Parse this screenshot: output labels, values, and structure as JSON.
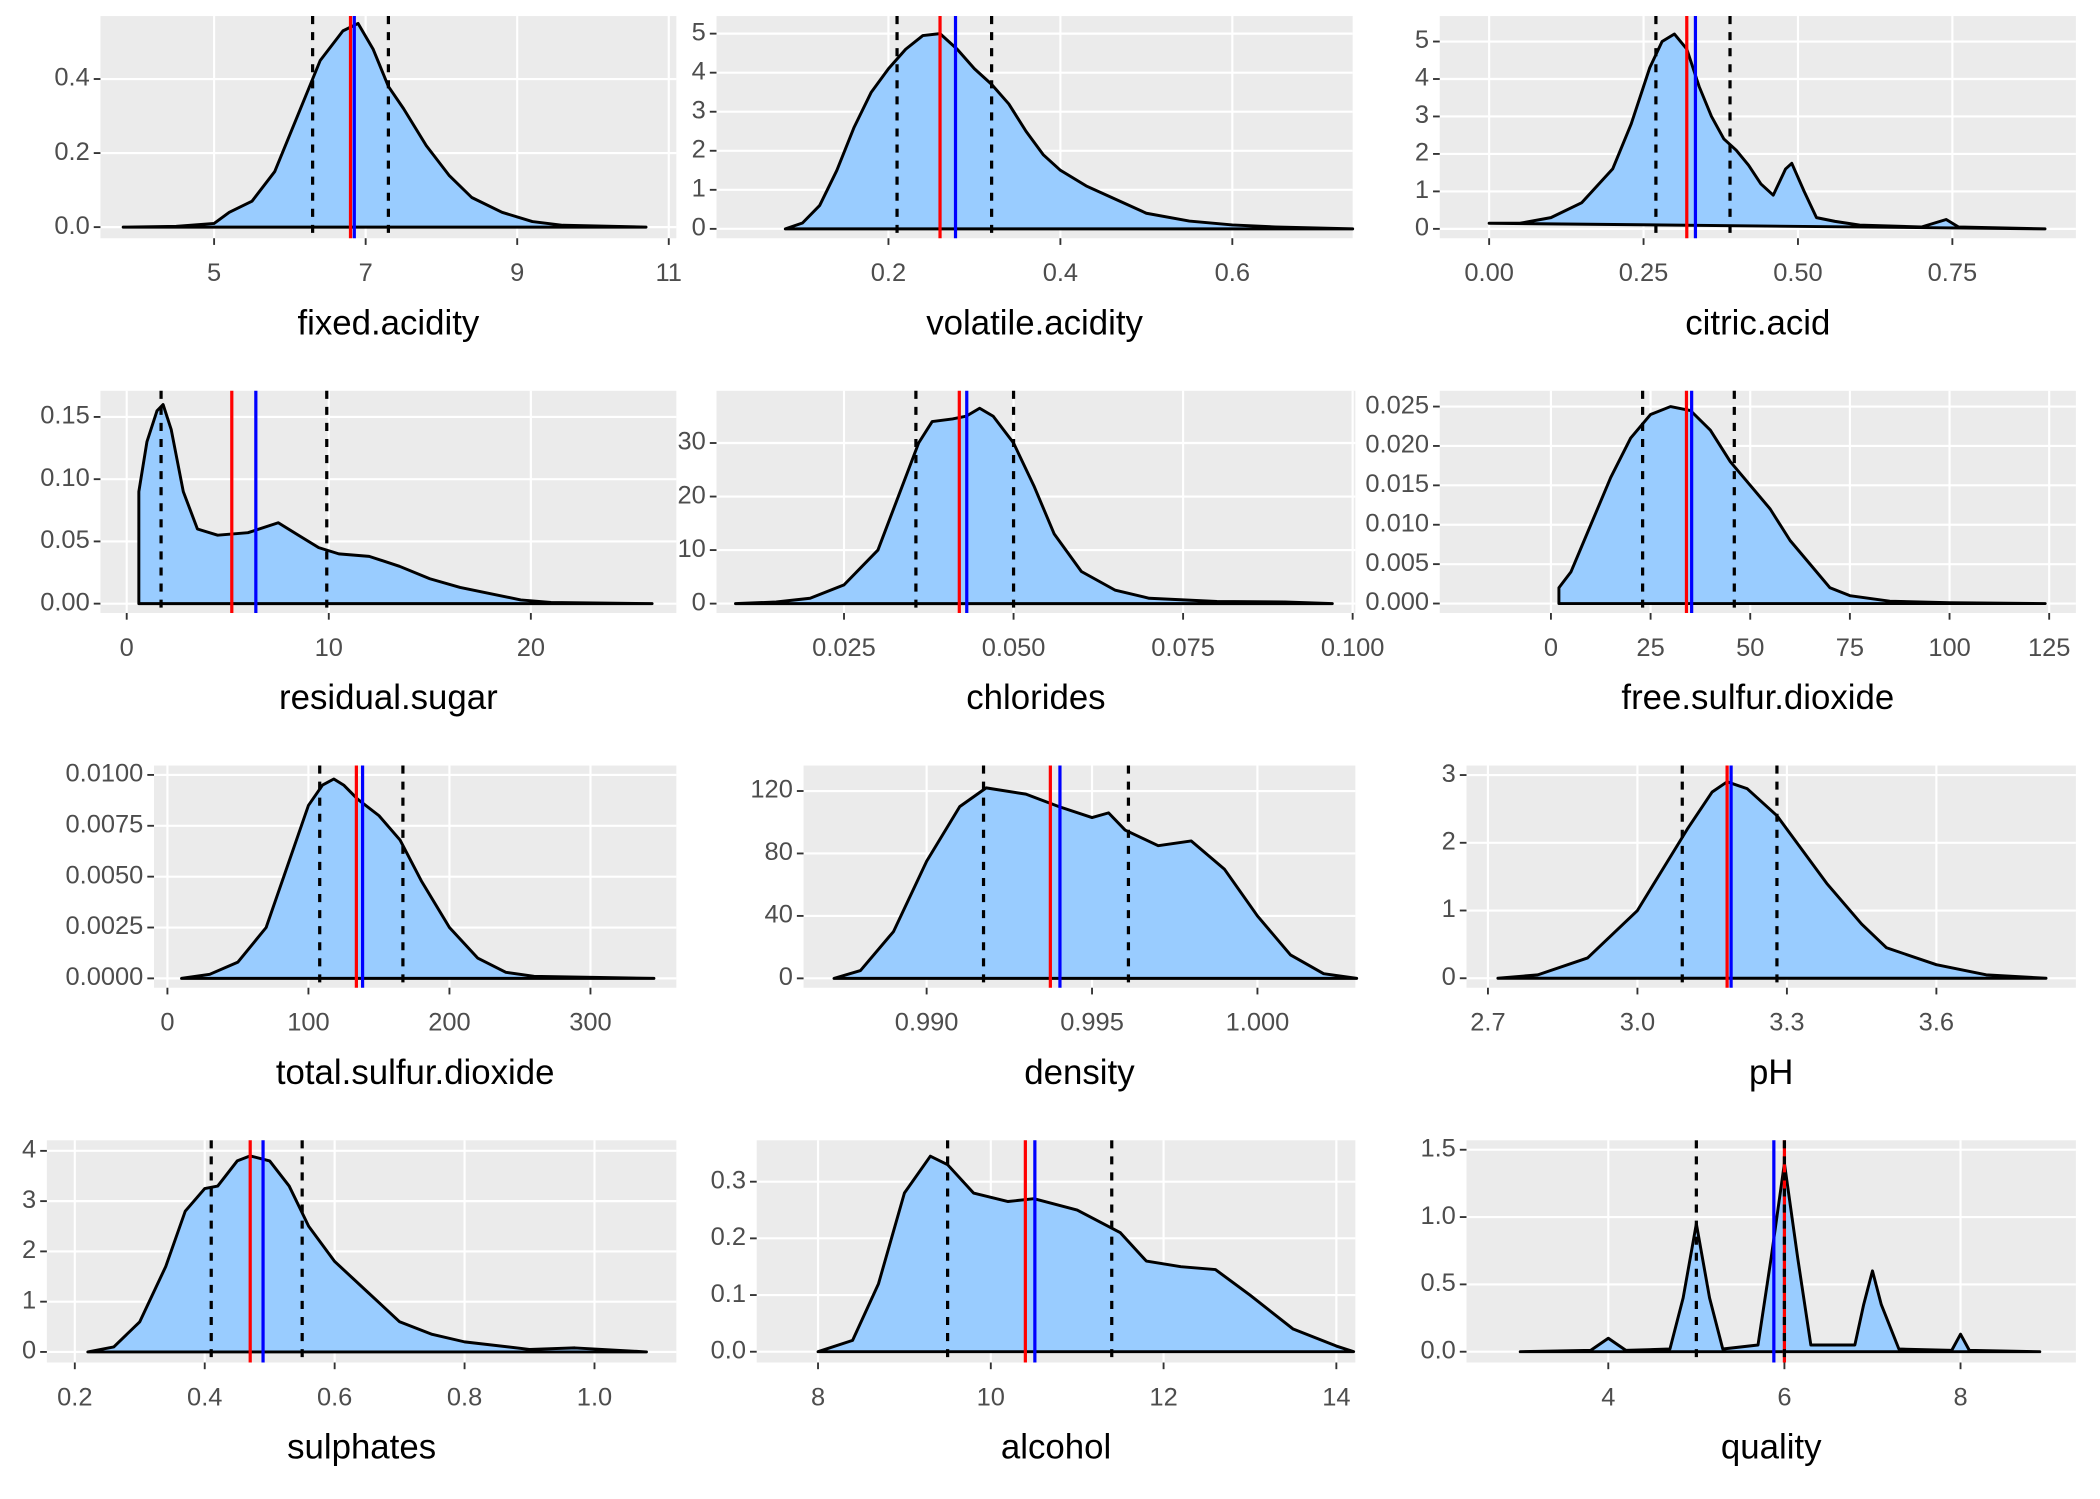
{
  "chart_data": [
    {
      "type": "density",
      "x_label": "fixed.acidity",
      "color": "#99ccff",
      "grid": true,
      "x": [
        3.8,
        4.5,
        5,
        5.2,
        5.5,
        5.8,
        6.1,
        6.4,
        6.7,
        6.9,
        7.1,
        7.3,
        7.5,
        7.8,
        8.1,
        8.4,
        8.8,
        9.2,
        9.6,
        10.7
      ],
      "values": [
        0,
        0.002,
        0.01,
        0.04,
        0.07,
        0.15,
        0.3,
        0.45,
        0.53,
        0.55,
        0.48,
        0.38,
        0.32,
        0.22,
        0.14,
        0.08,
        0.04,
        0.015,
        0.005,
        0
      ],
      "xlim": [
        3.5,
        11.1
      ],
      "ylim": [
        -0.03,
        0.57
      ],
      "xticks": [
        5,
        7,
        9,
        11
      ],
      "yticks": [
        {
          "value": 0,
          "label": "0.0"
        },
        0.2,
        0.4
      ],
      "reference_lines": [
        {
          "value": 6.8,
          "color": "red",
          "dashed": false
        },
        {
          "value": 6.85,
          "color": "blue",
          "dashed": false
        },
        {
          "value": 6.3,
          "color": "black",
          "dashed": true
        },
        {
          "value": 7.3,
          "color": "black",
          "dashed": true
        }
      ]
    },
    {
      "type": "density",
      "x_label": "volatile.acidity",
      "color": "#99ccff",
      "grid": true,
      "x": [
        0.08,
        0.1,
        0.12,
        0.14,
        0.16,
        0.18,
        0.2,
        0.22,
        0.24,
        0.26,
        0.28,
        0.3,
        0.32,
        0.34,
        0.36,
        0.38,
        0.4,
        0.43,
        0.46,
        0.5,
        0.55,
        0.6,
        0.65,
        0.74
      ],
      "values": [
        0,
        0.15,
        0.6,
        1.5,
        2.6,
        3.5,
        4.1,
        4.6,
        4.95,
        5.0,
        4.6,
        4.1,
        3.7,
        3.2,
        2.5,
        1.9,
        1.5,
        1.1,
        0.8,
        0.4,
        0.2,
        0.1,
        0.05,
        0
      ],
      "xlim": [
        0.0,
        0.74
      ],
      "ylim": [
        -0.24,
        5.45
      ],
      "xticks": [
        0.2,
        0.4,
        0.6
      ],
      "yticks": [
        0,
        1,
        2,
        3,
        4,
        5
      ],
      "reference_lines": [
        {
          "value": 0.26,
          "color": "red",
          "dashed": false
        },
        {
          "value": 0.278,
          "color": "blue",
          "dashed": false
        },
        {
          "value": 0.21,
          "color": "black",
          "dashed": true
        },
        {
          "value": 0.32,
          "color": "black",
          "dashed": true
        }
      ]
    },
    {
      "type": "density",
      "x_label": "citric.acid",
      "color": "#99ccff",
      "grid": true,
      "x": [
        0,
        0.05,
        0.1,
        0.15,
        0.2,
        0.23,
        0.26,
        0.28,
        0.3,
        0.32,
        0.34,
        0.36,
        0.38,
        0.4,
        0.42,
        0.44,
        0.46,
        0.48,
        0.49,
        0.51,
        0.53,
        0.56,
        0.6,
        0.7,
        0.74,
        0.76,
        0.9
      ],
      "values": [
        0.15,
        0.15,
        0.3,
        0.7,
        1.6,
        2.8,
        4.3,
        5.0,
        5.2,
        4.8,
        3.8,
        3.0,
        2.4,
        2.1,
        1.7,
        1.2,
        0.9,
        1.6,
        1.75,
        1.0,
        0.3,
        0.2,
        0.1,
        0.05,
        0.25,
        0.05,
        0
      ],
      "xlim": [
        -0.08,
        0.95
      ],
      "ylim": [
        -0.25,
        5.68
      ],
      "xticks": [
        {
          "value": 0,
          "label": "0.00"
        },
        0.25,
        {
          "value": 0.5,
          "label": "0.50"
        },
        0.75
      ],
      "yticks": [
        0,
        1,
        2,
        3,
        4,
        5
      ],
      "reference_lines": [
        {
          "value": 0.32,
          "color": "red",
          "dashed": false
        },
        {
          "value": 0.334,
          "color": "blue",
          "dashed": false
        },
        {
          "value": 0.27,
          "color": "black",
          "dashed": true
        },
        {
          "value": 0.39,
          "color": "black",
          "dashed": true
        }
      ]
    },
    {
      "type": "density",
      "x_label": "residual.sugar",
      "color": "#99ccff",
      "grid": true,
      "x": [
        0.6,
        0.6,
        1.0,
        1.5,
        1.8,
        2.2,
        2.8,
        3.5,
        4.5,
        6,
        7.5,
        8.5,
        9.5,
        10.5,
        12,
        13.5,
        15,
        16.5,
        18,
        19.5,
        21,
        26
      ],
      "values": [
        0,
        0.09,
        0.13,
        0.155,
        0.16,
        0.14,
        0.09,
        0.06,
        0.055,
        0.057,
        0.065,
        0.055,
        0.045,
        0.04,
        0.038,
        0.03,
        0.02,
        0.013,
        0.008,
        0.003,
        0.001,
        0
      ],
      "xlim": [
        -1.3,
        27.2
      ],
      "ylim": [
        -0.0075,
        0.171
      ],
      "xticks": [
        0,
        10,
        20
      ],
      "yticks": [
        {
          "value": 0,
          "label": "0.00"
        },
        0.05,
        {
          "value": 0.1,
          "label": "0.10"
        },
        0.15
      ],
      "reference_lines": [
        {
          "value": 5.2,
          "color": "red",
          "dashed": false
        },
        {
          "value": 6.39,
          "color": "blue",
          "dashed": false
        },
        {
          "value": 1.7,
          "color": "black",
          "dashed": true
        },
        {
          "value": 9.9,
          "color": "black",
          "dashed": true
        }
      ]
    },
    {
      "type": "density",
      "x_label": "chlorides",
      "color": "#99ccff",
      "grid": true,
      "x": [
        0.009,
        0.015,
        0.02,
        0.025,
        0.03,
        0.033,
        0.036,
        0.038,
        0.041,
        0.043,
        0.045,
        0.047,
        0.05,
        0.053,
        0.056,
        0.06,
        0.065,
        0.07,
        0.08,
        0.09,
        0.097
      ],
      "values": [
        0,
        0.3,
        1,
        3.5,
        10,
        20,
        30,
        34,
        34.5,
        35,
        36.5,
        35,
        30,
        22,
        13,
        6,
        2.5,
        1,
        0.4,
        0.3,
        0
      ],
      "xlim": [
        0.0062,
        0.1004
      ],
      "ylim": [
        -1.75,
        39.75
      ],
      "xticks": [
        0.025,
        {
          "value": 0.05,
          "label": "0.050"
        },
        0.075,
        {
          "value": 0.1,
          "label": "0.100"
        }
      ],
      "yticks": [
        0,
        10,
        20,
        30
      ],
      "reference_lines": [
        {
          "value": 0.042,
          "color": "red",
          "dashed": false
        },
        {
          "value": 0.0431,
          "color": "blue",
          "dashed": false
        },
        {
          "value": 0.0356,
          "color": "black",
          "dashed": true
        },
        {
          "value": 0.05,
          "color": "black",
          "dashed": true
        }
      ]
    },
    {
      "type": "density",
      "x_label": "free.sulfur.dioxide",
      "color": "#99ccff",
      "grid": true,
      "x": [
        2,
        2,
        5,
        10,
        15,
        20,
        25,
        30,
        35,
        40,
        45,
        50,
        55,
        60,
        65,
        70,
        75,
        85,
        100,
        124
      ],
      "values": [
        0,
        0.002,
        0.004,
        0.01,
        0.016,
        0.021,
        0.024,
        0.025,
        0.0245,
        0.022,
        0.018,
        0.015,
        0.012,
        0.008,
        0.005,
        0.002,
        0.001,
        0.0003,
        0.0001,
        0
      ],
      "xlim": [
        -27.9,
        131.7
      ],
      "ylim": [
        -0.0012,
        0.027
      ],
      "xticks": [
        0,
        25,
        50,
        75,
        100,
        125
      ],
      "yticks": [
        {
          "value": 0,
          "label": "0.000"
        },
        0.005,
        {
          "value": 0.01,
          "label": "0.010"
        },
        0.015,
        {
          "value": 0.02,
          "label": "0.020"
        },
        0.025
      ],
      "reference_lines": [
        {
          "value": 34,
          "color": "red",
          "dashed": false
        },
        {
          "value": 35.3,
          "color": "blue",
          "dashed": false
        },
        {
          "value": 23,
          "color": "black",
          "dashed": true
        },
        {
          "value": 46,
          "color": "black",
          "dashed": true
        }
      ]
    },
    {
      "type": "density",
      "x_label": "total.sulfur.dioxide",
      "color": "#99ccff",
      "grid": true,
      "x": [
        10,
        30,
        50,
        70,
        85,
        100,
        110,
        118,
        125,
        135,
        150,
        165,
        180,
        200,
        220,
        240,
        260,
        345
      ],
      "values": [
        0,
        0.0002,
        0.0008,
        0.0025,
        0.0055,
        0.0085,
        0.0095,
        0.0098,
        0.0095,
        0.0088,
        0.008,
        0.0068,
        0.0048,
        0.0025,
        0.001,
        0.0003,
        0.0001,
        0
      ],
      "xlim": [
        -9.5,
        360.9
      ],
      "ylim": [
        -0.00046,
        0.01046
      ],
      "xticks": [
        0,
        100,
        200,
        300
      ],
      "yticks": [
        {
          "value": 0,
          "label": "0.0000"
        },
        0.0025,
        {
          "value": 0.005,
          "label": "0.0050"
        },
        0.0075,
        {
          "value": 0.01,
          "label": "0.0100"
        }
      ],
      "reference_lines": [
        {
          "value": 134,
          "color": "red",
          "dashed": false
        },
        {
          "value": 138.4,
          "color": "blue",
          "dashed": false
        },
        {
          "value": 108,
          "color": "black",
          "dashed": true
        },
        {
          "value": 167,
          "color": "black",
          "dashed": true
        }
      ]
    },
    {
      "type": "density",
      "x_label": "density",
      "color": "#99ccff",
      "grid": true,
      "x": [
        0.9872,
        0.988,
        0.989,
        0.99,
        0.991,
        0.9918,
        0.993,
        0.994,
        0.995,
        0.9955,
        0.996,
        0.997,
        0.998,
        0.999,
        1.0,
        1.001,
        1.002,
        1.003
      ],
      "values": [
        0,
        5,
        30,
        75,
        110,
        122,
        118,
        110,
        103,
        106,
        95,
        85,
        88,
        70,
        40,
        15,
        3,
        0
      ],
      "xlim": [
        0.98628,
        1.00296
      ],
      "ylim": [
        -6,
        136.3
      ],
      "xticks": [
        {
          "value": 0.99,
          "label": "0.990"
        },
        0.995,
        {
          "value": 1,
          "label": "1.000"
        }
      ],
      "yticks": [
        0,
        40,
        80,
        120
      ],
      "reference_lines": [
        {
          "value": 0.99374,
          "color": "red",
          "dashed": false
        },
        {
          "value": 0.99403,
          "color": "blue",
          "dashed": false
        },
        {
          "value": 0.99172,
          "color": "black",
          "dashed": true
        },
        {
          "value": 0.9961,
          "color": "black",
          "dashed": true
        }
      ]
    },
    {
      "type": "density",
      "x_label": "pH",
      "color": "#99ccff",
      "grid": true,
      "x": [
        2.72,
        2.8,
        2.9,
        3.0,
        3.05,
        3.1,
        3.15,
        3.18,
        3.22,
        3.28,
        3.32,
        3.38,
        3.45,
        3.5,
        3.6,
        3.7,
        3.82
      ],
      "values": [
        0,
        0.05,
        0.3,
        1.0,
        1.6,
        2.2,
        2.75,
        2.9,
        2.8,
        2.4,
        2.0,
        1.4,
        0.8,
        0.45,
        0.2,
        0.05,
        0
      ],
      "xlim": [
        2.657,
        3.88
      ],
      "ylim": [
        -0.14,
        3.14
      ],
      "xticks": [
        2.7,
        {
          "value": 3,
          "label": "3.0"
        },
        3.3,
        3.6
      ],
      "yticks": [
        0,
        1,
        2,
        3
      ],
      "reference_lines": [
        {
          "value": 3.18,
          "color": "red",
          "dashed": false
        },
        {
          "value": 3.188,
          "color": "blue",
          "dashed": false
        },
        {
          "value": 3.09,
          "color": "black",
          "dashed": true
        },
        {
          "value": 3.28,
          "color": "black",
          "dashed": true
        }
      ]
    },
    {
      "type": "density",
      "x_label": "sulphates",
      "color": "#99ccff",
      "grid": true,
      "x": [
        0.22,
        0.26,
        0.3,
        0.34,
        0.37,
        0.4,
        0.42,
        0.45,
        0.47,
        0.5,
        0.53,
        0.56,
        0.6,
        0.65,
        0.7,
        0.75,
        0.8,
        0.9,
        0.97,
        1.08
      ],
      "values": [
        0,
        0.1,
        0.6,
        1.7,
        2.8,
        3.25,
        3.3,
        3.8,
        3.9,
        3.8,
        3.3,
        2.5,
        1.8,
        1.2,
        0.6,
        0.35,
        0.2,
        0.05,
        0.08,
        0
      ],
      "xlim": [
        0.157,
        1.126
      ],
      "ylim": [
        -0.21,
        4.21
      ],
      "xticks": [
        0.2,
        0.4,
        0.6,
        0.8,
        {
          "value": 1,
          "label": "1.0"
        }
      ],
      "yticks": [
        0,
        1,
        2,
        3,
        4
      ],
      "reference_lines": [
        {
          "value": 0.47,
          "color": "red",
          "dashed": false
        },
        {
          "value": 0.4898,
          "color": "blue",
          "dashed": false
        },
        {
          "value": 0.41,
          "color": "black",
          "dashed": true
        },
        {
          "value": 0.55,
          "color": "black",
          "dashed": true
        }
      ]
    },
    {
      "type": "density",
      "x_label": "alcohol",
      "color": "#99ccff",
      "grid": true,
      "x": [
        8,
        8.4,
        8.7,
        9.0,
        9.3,
        9.5,
        9.8,
        10.2,
        10.5,
        11,
        11.5,
        11.8,
        12.2,
        12.6,
        13,
        13.5,
        14,
        14.2
      ],
      "values": [
        0,
        0.02,
        0.12,
        0.28,
        0.345,
        0.33,
        0.28,
        0.265,
        0.27,
        0.25,
        0.21,
        0.16,
        0.15,
        0.145,
        0.1,
        0.04,
        0.01,
        0
      ],
      "xlim": [
        7.29,
        14.22
      ],
      "ylim": [
        -0.019,
        0.373
      ],
      "xticks": [
        8,
        10,
        12,
        14
      ],
      "yticks": [
        {
          "value": 0,
          "label": "0.0"
        },
        0.1,
        0.2,
        0.3
      ],
      "reference_lines": [
        {
          "value": 10.4,
          "color": "red",
          "dashed": false
        },
        {
          "value": 10.51,
          "color": "blue",
          "dashed": false
        },
        {
          "value": 9.5,
          "color": "black",
          "dashed": true
        },
        {
          "value": 11.4,
          "color": "black",
          "dashed": true
        }
      ]
    },
    {
      "type": "density",
      "x_label": "quality",
      "color": "#99ccff",
      "grid": true,
      "x": [
        3,
        3.8,
        4,
        4.2,
        4.7,
        4.85,
        5,
        5.15,
        5.3,
        5.7,
        5.85,
        6,
        6.15,
        6.3,
        6.8,
        6.9,
        7,
        7.1,
        7.3,
        7.9,
        8,
        8.1,
        8.9
      ],
      "values": [
        0,
        0.01,
        0.1,
        0.01,
        0.02,
        0.4,
        0.95,
        0.4,
        0.02,
        0.05,
        0.7,
        1.4,
        0.7,
        0.05,
        0.05,
        0.35,
        0.6,
        0.35,
        0.02,
        0.01,
        0.13,
        0.01,
        0
      ],
      "xlim": [
        2.39,
        9.31
      ],
      "ylim": [
        -0.08,
        1.57
      ],
      "xticks": [
        4,
        6,
        8
      ],
      "yticks": [
        {
          "value": 0,
          "label": "0.0"
        },
        0.5,
        {
          "value": 1,
          "label": "1.0"
        },
        1.5
      ],
      "reference_lines": [
        {
          "value": 6,
          "color": "red",
          "dashed": false
        },
        {
          "value": 5.88,
          "color": "blue",
          "dashed": false
        },
        {
          "value": 5,
          "color": "black",
          "dashed": true
        },
        {
          "value": 6,
          "color": "black",
          "dashed": true
        }
      ]
    }
  ]
}
